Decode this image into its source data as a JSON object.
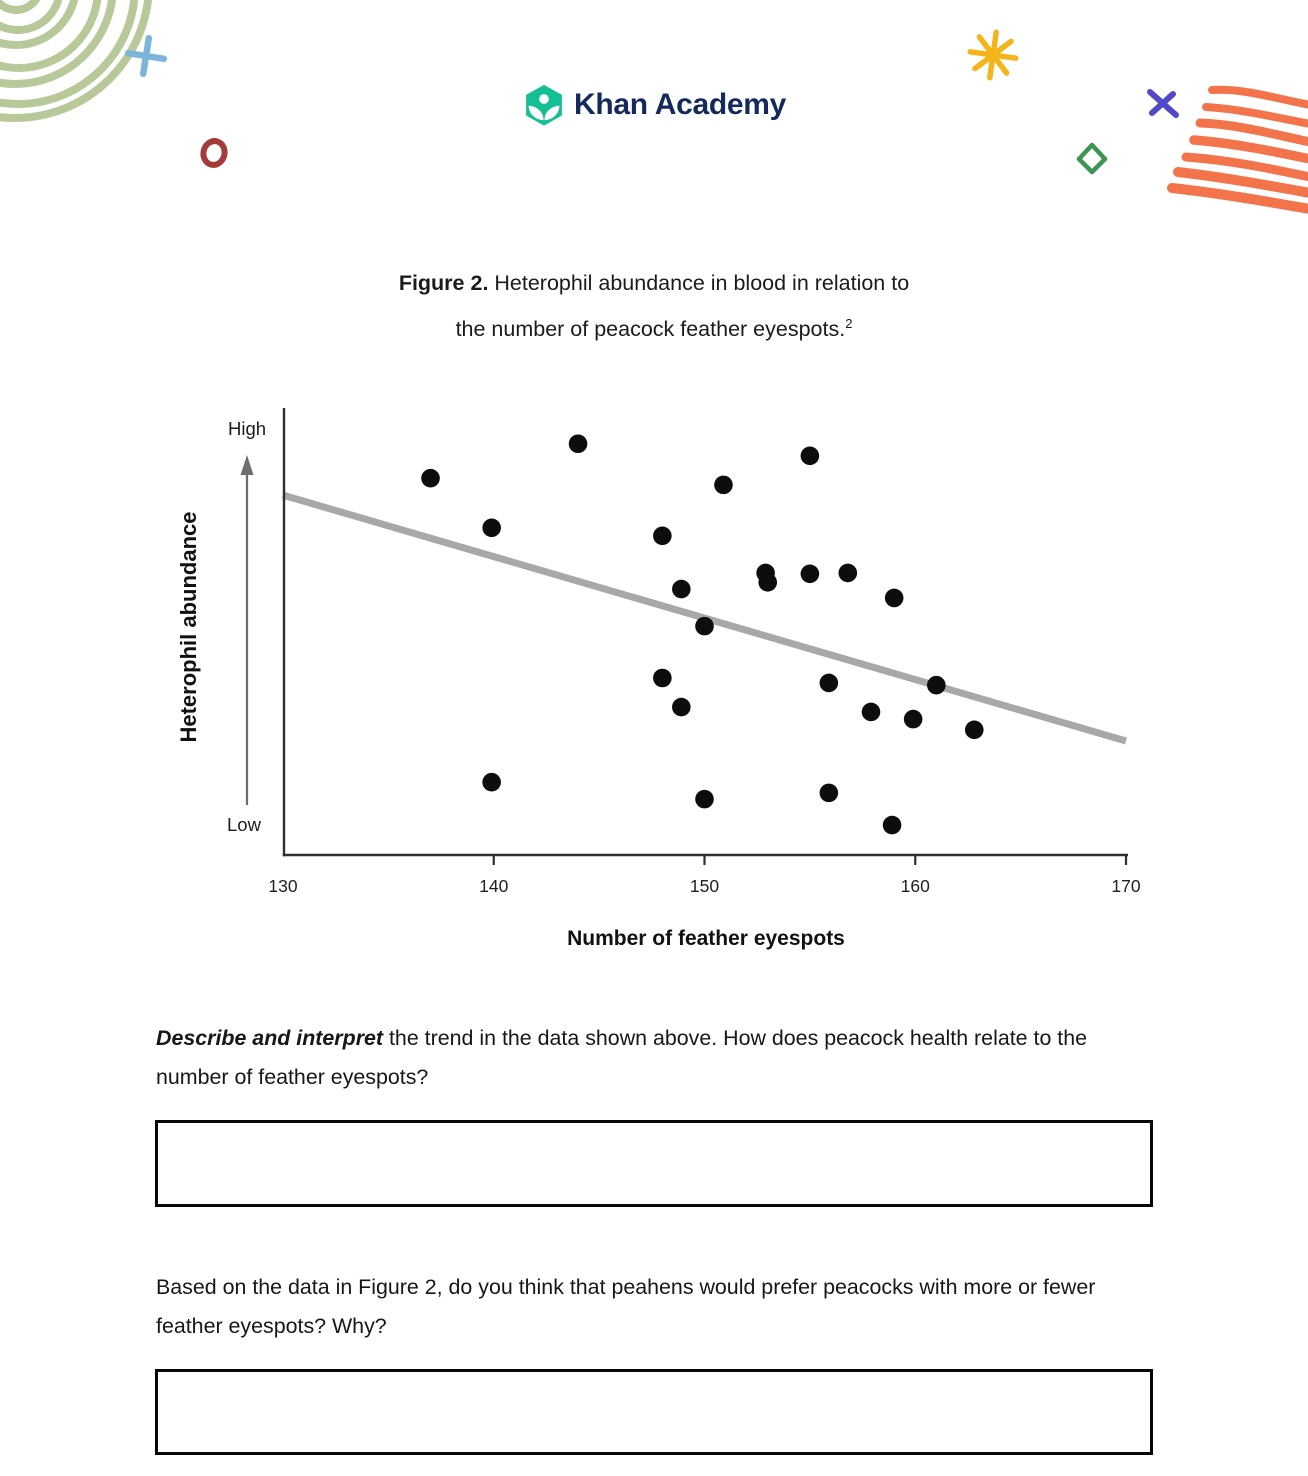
{
  "brand": {
    "name": "Khan Academy",
    "logo_hex_color": "#14bf96",
    "wordmark_color": "#14295c"
  },
  "figure": {
    "caption_bold": "Figure 2.",
    "caption_line1_rest": " Heterophil abundance in blood in relation to",
    "caption_line2": "the number of peacock feather eyespots.",
    "caption_superscript": "2"
  },
  "chart_data": {
    "type": "scatter",
    "xlabel": "Number of feather eyespots",
    "ylabel": "Heterophil abundance",
    "x_ticks": [
      130,
      140,
      150,
      160,
      170
    ],
    "xlim": [
      130,
      170
    ],
    "ylim": [
      0,
      100
    ],
    "y_axis_type": "qualitative",
    "y_labels": {
      "high": "High",
      "low": "Low"
    },
    "grid": false,
    "legend": "none",
    "points": [
      {
        "x": 137.0,
        "y": 84.3
      },
      {
        "x": 139.9,
        "y": 73.2
      },
      {
        "x": 144.0,
        "y": 92.0
      },
      {
        "x": 148.0,
        "y": 71.4
      },
      {
        "x": 150.9,
        "y": 82.8
      },
      {
        "x": 148.9,
        "y": 59.5
      },
      {
        "x": 150.0,
        "y": 51.2
      },
      {
        "x": 152.9,
        "y": 63.1
      },
      {
        "x": 153.0,
        "y": 61.0
      },
      {
        "x": 155.0,
        "y": 62.9
      },
      {
        "x": 156.8,
        "y": 63.1
      },
      {
        "x": 159.0,
        "y": 57.5
      },
      {
        "x": 155.0,
        "y": 89.3
      },
      {
        "x": 148.0,
        "y": 39.6
      },
      {
        "x": 148.9,
        "y": 33.1
      },
      {
        "x": 155.9,
        "y": 38.5
      },
      {
        "x": 157.9,
        "y": 32.0
      },
      {
        "x": 159.9,
        "y": 30.4
      },
      {
        "x": 161.0,
        "y": 38.0
      },
      {
        "x": 162.8,
        "y": 28.0
      },
      {
        "x": 139.9,
        "y": 16.3
      },
      {
        "x": 150.0,
        "y": 12.5
      },
      {
        "x": 155.9,
        "y": 13.9
      },
      {
        "x": 158.9,
        "y": 6.7
      }
    ],
    "trend_line": {
      "x1": 130,
      "y1": 80.5,
      "x2": 170,
      "y2": 25.5
    },
    "colors": {
      "point": "#0d0d0d",
      "trend": "#a8a8a8",
      "axis": "#2e2e2e",
      "arrow": "#6e6e6e",
      "tick_label": "#222222",
      "axis_label": "#111111"
    }
  },
  "questions": [
    {
      "lead": "Describe and interpret",
      "lead_style": "bold-italic",
      "rest": " the trend in the data shown above. How does peacock health relate to the number of feather eyespots?"
    },
    {
      "lead": "",
      "lead_style": "none",
      "rest": "Based on the data in Figure 2, do you think that peahens would prefer peacocks with more or fewer feather eyespots? Why?"
    }
  ],
  "answer_boxes": [
    {
      "value": "",
      "placeholder": ""
    },
    {
      "value": "",
      "placeholder": ""
    }
  ],
  "decorations": {
    "scribble_color": "#b8c999",
    "plus_color": "#7cb5da",
    "ring_color": "#a33b3b",
    "asterisk_color": "#f4b41a",
    "x_color": "#5149c9",
    "diamond_color": "#3c9455",
    "brush_color": "#f3734b"
  }
}
